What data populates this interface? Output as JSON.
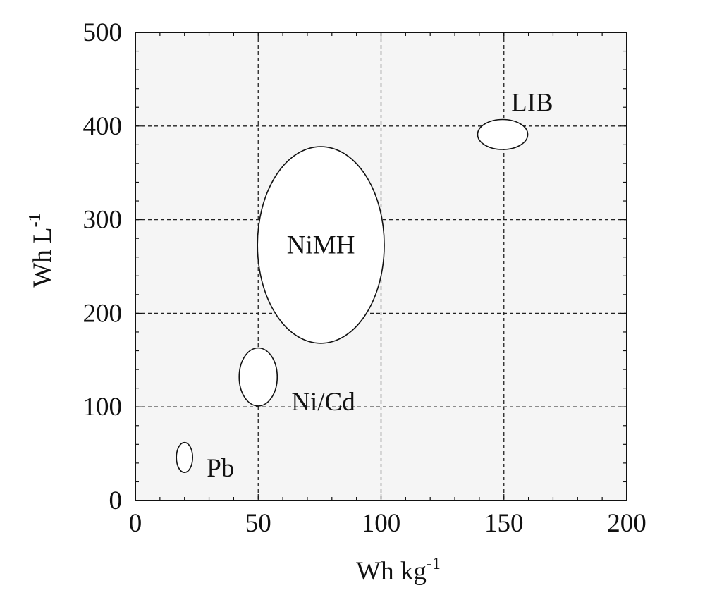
{
  "chart_data": {
    "type": "scatter",
    "title": "",
    "xlabel": "Wh kg",
    "xlabel_sup": "-1",
    "ylabel": "Wh L",
    "ylabel_sup": "-1",
    "xlim": [
      0,
      200
    ],
    "ylim": [
      0,
      500
    ],
    "x_ticks": [
      0,
      50,
      100,
      150,
      200
    ],
    "y_ticks": [
      0,
      100,
      200,
      300,
      400,
      500
    ],
    "grid": true,
    "grid_style": "dashed",
    "plot_background": "#f5f5f5",
    "regions": [
      {
        "label": "Pb",
        "x_center": 20,
        "y_center": 46,
        "x_range": [
          16.7,
          23.3
        ],
        "y_range": [
          30,
          62
        ],
        "label_position": "lower-right"
      },
      {
        "label": "Ni/Cd",
        "x_center": 50,
        "y_center": 132,
        "x_range": [
          42.2,
          57.7
        ],
        "y_range": [
          101,
          163
        ],
        "label_position": "lower-right"
      },
      {
        "label": "NiMH",
        "x_center": 75.5,
        "y_center": 273,
        "x_range": [
          49.7,
          101.3
        ],
        "y_range": [
          168,
          378
        ],
        "label_position": "inside"
      },
      {
        "label": "LIB",
        "x_center": 149.5,
        "y_center": 391,
        "x_range": [
          139.3,
          159.7
        ],
        "y_range": [
          375,
          407
        ],
        "label_position": "above-right"
      }
    ]
  }
}
